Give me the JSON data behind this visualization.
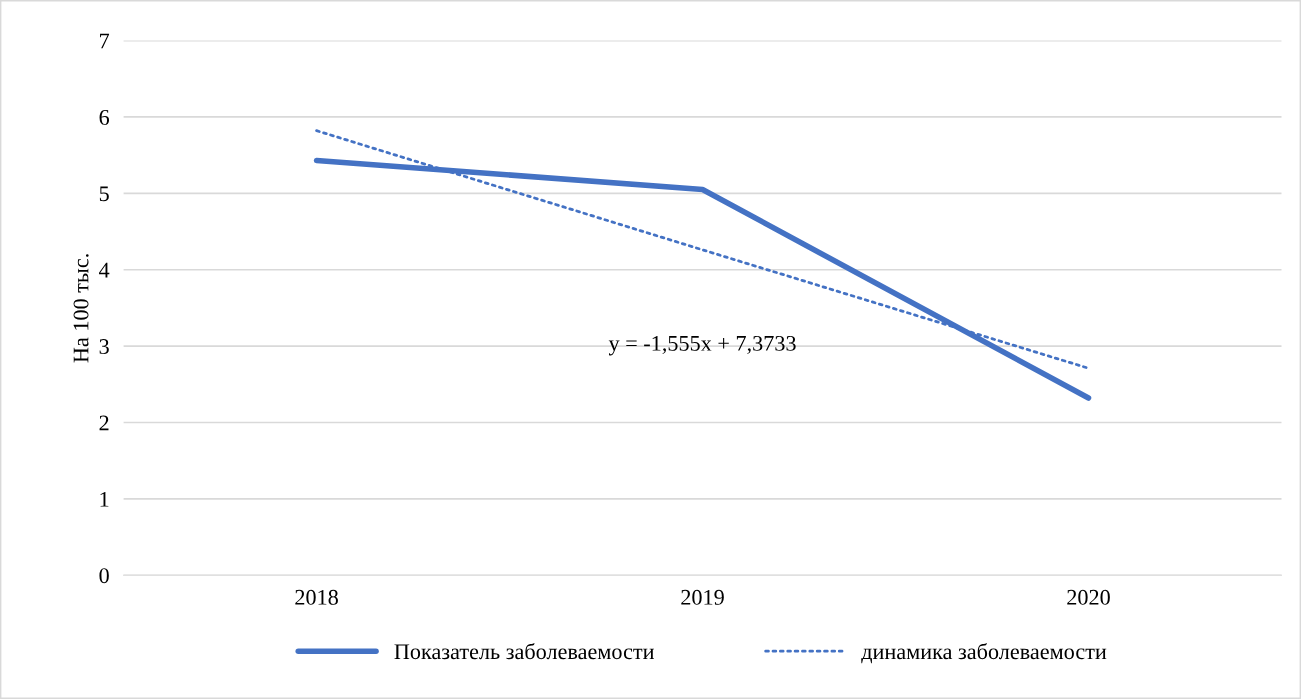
{
  "chart_data": {
    "type": "line",
    "ylabel": "На 100 тыс.",
    "categories": [
      "2018",
      "2019",
      "2020"
    ],
    "series": [
      {
        "name": "Показатель заболеваемости",
        "color": "#4472c4",
        "values": [
          5.43,
          5.05,
          2.32
        ],
        "line_style": "solid"
      },
      {
        "name": "динамика заболеваемости",
        "color": "#4472c4",
        "values": [
          5.82,
          4.26,
          2.71
        ],
        "line_style": "dotted"
      }
    ],
    "annotations": [
      "y = -1,555x + 7,3733"
    ],
    "ylim": [
      0,
      7
    ],
    "yticks": [
      0,
      1,
      2,
      3,
      4,
      5,
      6,
      7
    ],
    "grid": "y",
    "legend": "bottom"
  }
}
